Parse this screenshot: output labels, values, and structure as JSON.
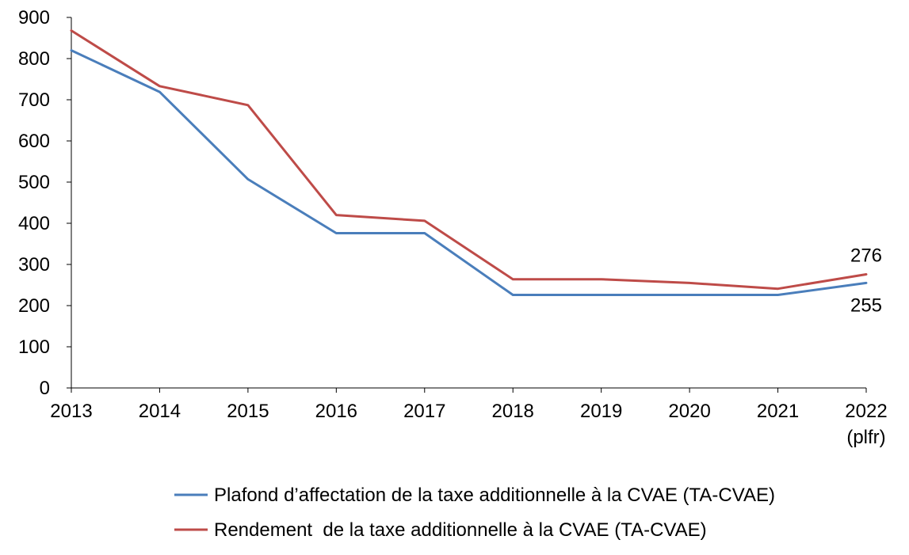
{
  "chart_data": {
    "type": "line",
    "title": "",
    "xlabel": "",
    "ylabel": "",
    "categories": [
      "2013",
      "2014",
      "2015",
      "2016",
      "2017",
      "2018",
      "2019",
      "2020",
      "2021",
      "2022"
    ],
    "category_sublabels": [
      "",
      "",
      "",
      "",
      "",
      "",
      "",
      "",
      "",
      "(plfr)"
    ],
    "ylim": [
      0,
      900
    ],
    "yticks": [
      0,
      100,
      200,
      300,
      400,
      500,
      600,
      700,
      800,
      900
    ],
    "grid": false,
    "legend_position": "bottom",
    "series": [
      {
        "name": "Plafond d’affectation de la taxe additionnelle à la CVAE (TA-CVAE)",
        "color": "#4A7EBB",
        "values": [
          820,
          719,
          507,
          376,
          376,
          226,
          226,
          226,
          226,
          255
        ]
      },
      {
        "name": "Rendement  de la taxe additionnelle à la CVAE (TA-CVAE)",
        "color": "#BE4B48",
        "values": [
          868,
          733,
          687,
          420,
          406,
          264,
          264,
          255,
          241,
          276
        ]
      }
    ],
    "data_labels": [
      {
        "series": 1,
        "index": 9,
        "text": "276",
        "position": "above"
      },
      {
        "series": 0,
        "index": 9,
        "text": "255",
        "position": "below"
      }
    ]
  }
}
